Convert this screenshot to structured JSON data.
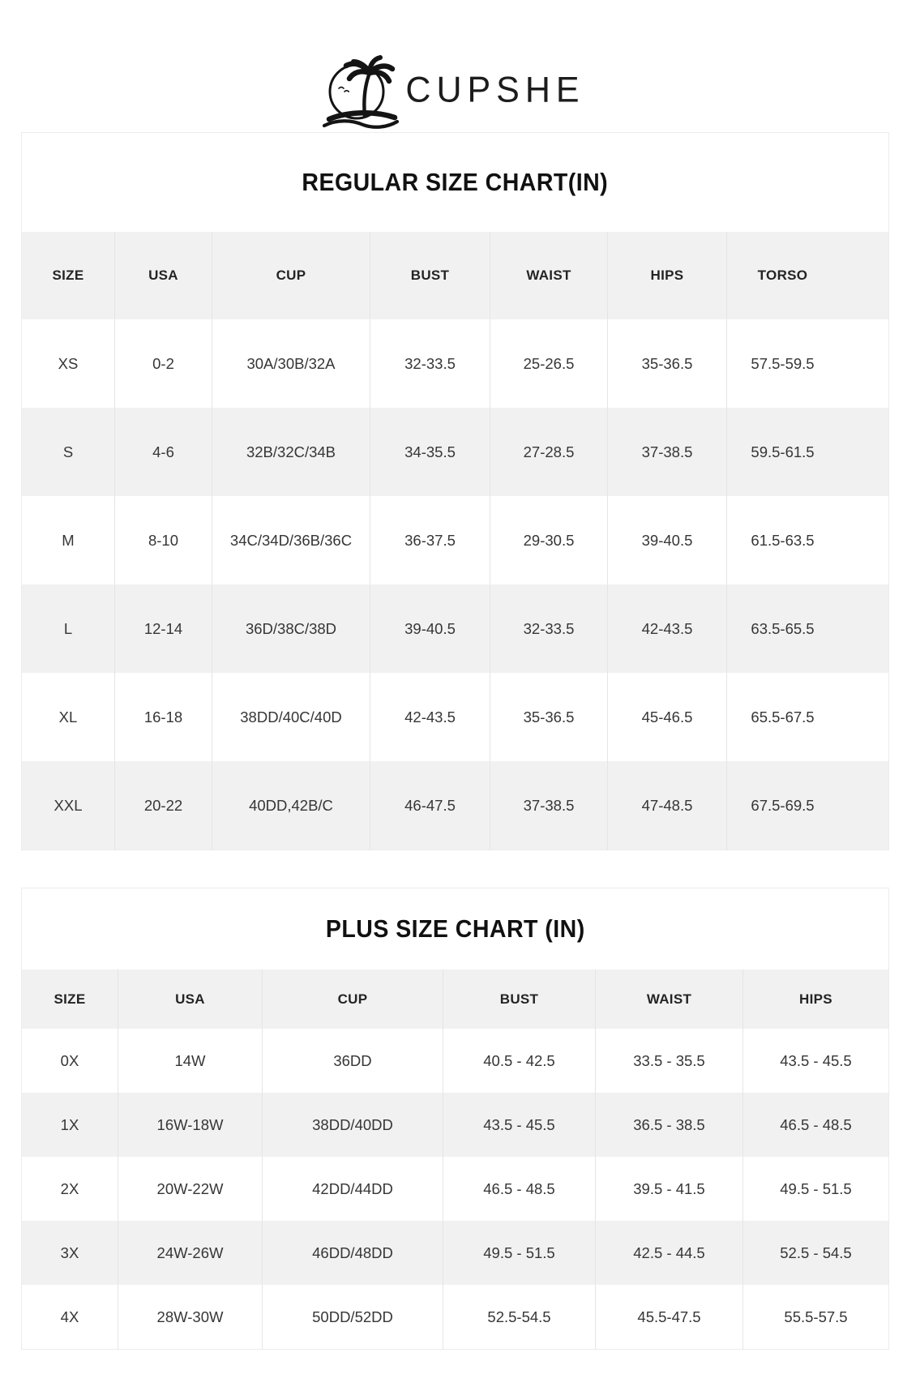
{
  "logo": {
    "brand": "CUPSHE",
    "icon": "palm-tree-island-icon"
  },
  "regular_chart": {
    "title": "REGULAR SIZE CHART(IN)",
    "columns": [
      "SIZE",
      "USA",
      "CUP",
      "BUST",
      "WAIST",
      "HIPS",
      "TORSO"
    ],
    "rows": [
      [
        "XS",
        "0-2",
        "30A/30B/32A",
        "32-33.5",
        "25-26.5",
        "35-36.5",
        "57.5-59.5"
      ],
      [
        "S",
        "4-6",
        "32B/32C/34B",
        "34-35.5",
        "27-28.5",
        "37-38.5",
        "59.5-61.5"
      ],
      [
        "M",
        "8-10",
        "34C/34D/36B/36C",
        "36-37.5",
        "29-30.5",
        "39-40.5",
        "61.5-63.5"
      ],
      [
        "L",
        "12-14",
        "36D/38C/38D",
        "39-40.5",
        "32-33.5",
        "42-43.5",
        "63.5-65.5"
      ],
      [
        "XL",
        "16-18",
        "38DD/40C/40D",
        "42-43.5",
        "35-36.5",
        "45-46.5",
        "65.5-67.5"
      ],
      [
        "XXL",
        "20-22",
        "40DD,42B/C",
        "46-47.5",
        "37-38.5",
        "47-48.5",
        "67.5-69.5"
      ]
    ]
  },
  "plus_chart": {
    "title": "PLUS SIZE CHART (IN)",
    "columns": [
      "SIZE",
      "USA",
      "CUP",
      "BUST",
      "WAIST",
      "HIPS"
    ],
    "rows": [
      [
        "0X",
        "14W",
        "36DD",
        "40.5 - 42.5",
        "33.5 - 35.5",
        "43.5 - 45.5"
      ],
      [
        "1X",
        "16W-18W",
        "38DD/40DD",
        "43.5 - 45.5",
        "36.5 - 38.5",
        "46.5 - 48.5"
      ],
      [
        "2X",
        "20W-22W",
        "42DD/44DD",
        "46.5 - 48.5",
        "39.5 - 41.5",
        "49.5 - 51.5"
      ],
      [
        "3X",
        "24W-26W",
        "46DD/48DD",
        "49.5 - 51.5",
        "42.5 - 44.5",
        "52.5 - 54.5"
      ],
      [
        "4X",
        "28W-30W",
        "50DD/52DD",
        "52.5-54.5",
        "45.5-47.5",
        "55.5-57.5"
      ]
    ]
  },
  "colors": {
    "brand_black": "#111111",
    "row_alt_gray": "#f1f1f1"
  }
}
